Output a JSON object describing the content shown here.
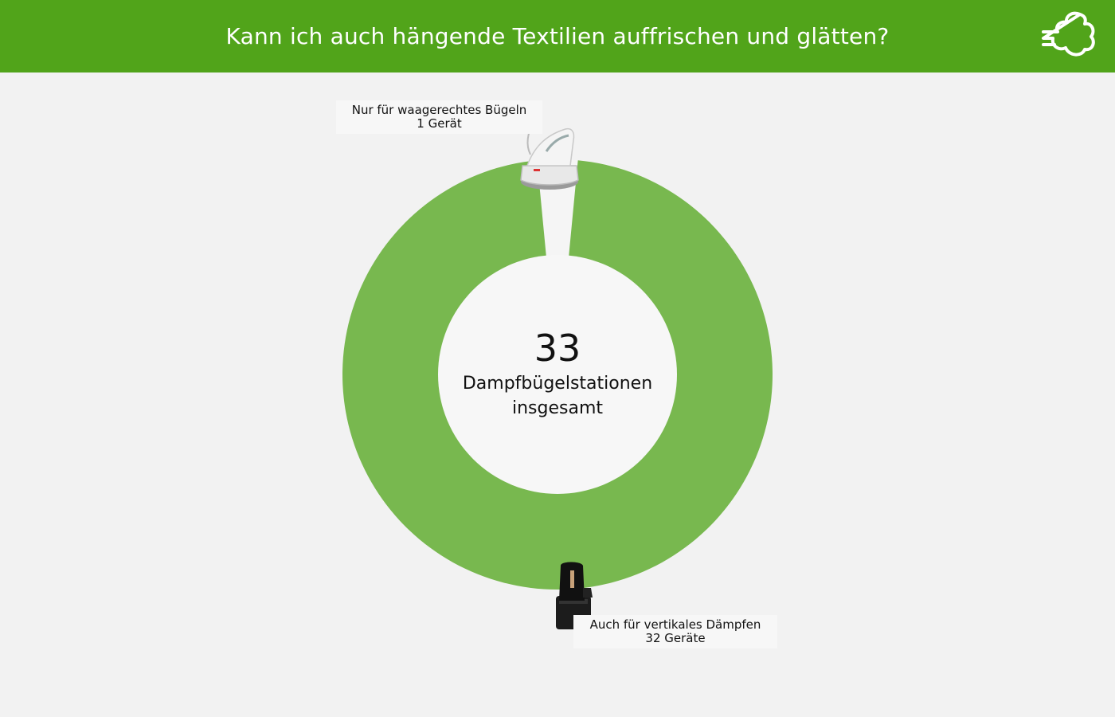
{
  "header": {
    "title": "Kann ich auch hängende Textilien auffrischen und glätten?",
    "icon": "steam-cloud-icon"
  },
  "colors": {
    "header_bg": "#51a41a",
    "slice_primary": "#78b84f",
    "slice_secondary": "#f5f5f5",
    "page_bg": "#f2f2f2"
  },
  "chart_data": {
    "type": "pie",
    "style": "donut",
    "center": {
      "value": "33",
      "label": "Dampfbügelstationen insgesamt"
    },
    "slices": [
      {
        "name": "Nur für waagerechtes Bügeln",
        "value": 1,
        "value_label": "1 Gerät",
        "icon": "steam-iron-white-icon"
      },
      {
        "name": "Auch für vertikales Dämpfen",
        "value": 32,
        "value_label": "32 Geräte",
        "icon": "steam-station-black-icon"
      }
    ]
  }
}
